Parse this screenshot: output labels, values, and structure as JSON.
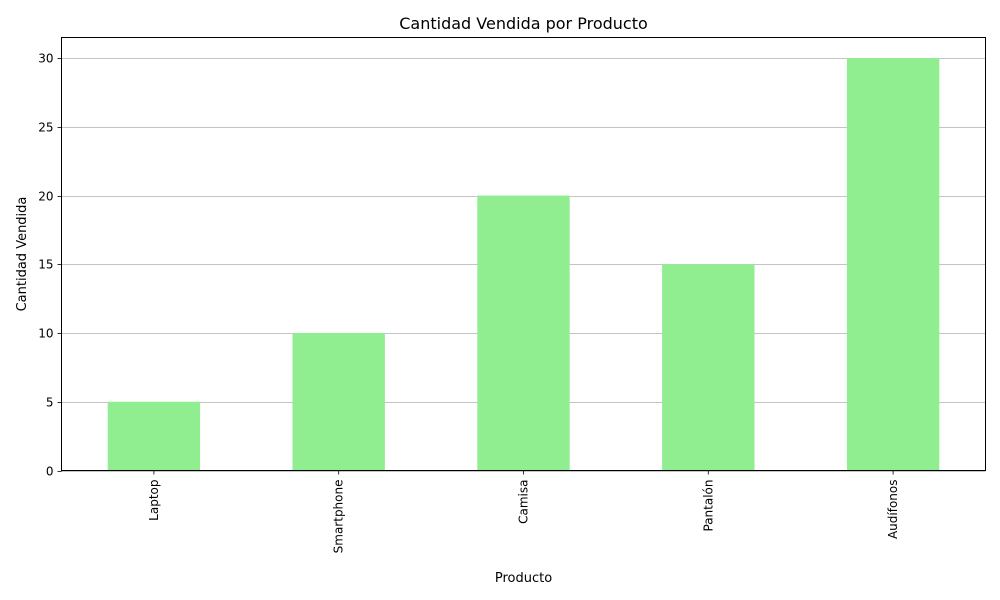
{
  "chart_data": {
    "type": "bar",
    "title": "Cantidad Vendida por Producto",
    "xlabel": "Producto",
    "ylabel": "Cantidad Vendida",
    "categories": [
      "Laptop",
      "Smartphone",
      "Camisa",
      "Pantalón",
      "Audífonos"
    ],
    "values": [
      5,
      10,
      20,
      15,
      30
    ],
    "ylim": [
      0,
      31.5
    ],
    "yticks": [
      0,
      5,
      10,
      15,
      20,
      25,
      30
    ],
    "grid": "horizontal",
    "bar_color": "#90ee90",
    "x_tick_rotation": "vertical"
  }
}
